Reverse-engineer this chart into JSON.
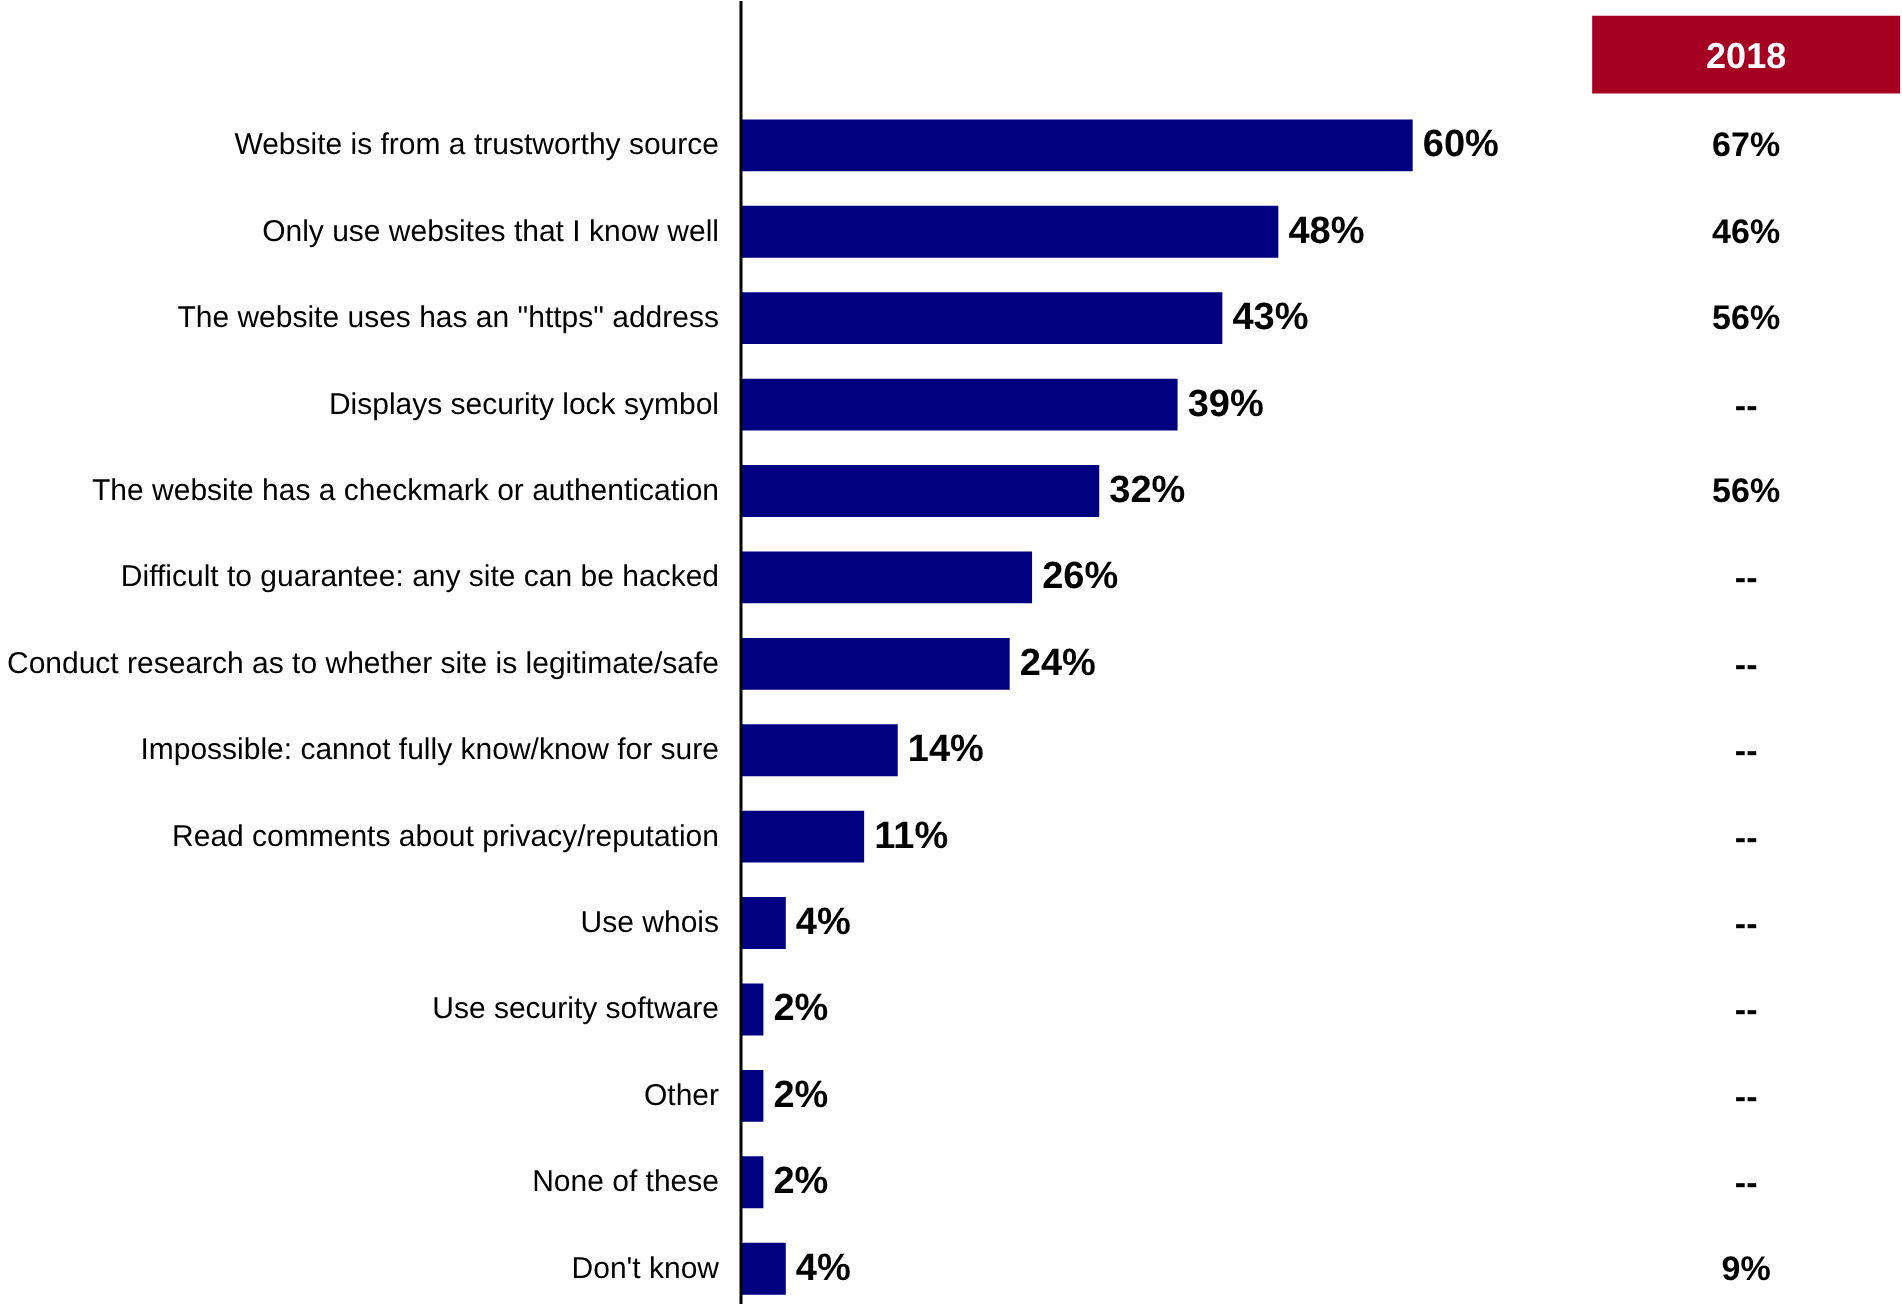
{
  "chart_data": {
    "type": "bar",
    "orientation": "horizontal",
    "categories": [
      "Website is from a trustworthy source",
      "Only use websites that I know well",
      "The website uses has an \"https\" address",
      "Displays security lock symbol",
      "The website has a checkmark or authentication",
      "Difficult to guarantee: any site can be hacked",
      "Conduct research as to whether site is legitimate/safe",
      "Impossible: cannot fully know/know for sure",
      "Read comments about privacy/reputation",
      "Use whois",
      "Use security software",
      "Other",
      "None of these",
      "Don't know"
    ],
    "series": [
      {
        "color": "#000080",
        "values": [
          60,
          48,
          43,
          39,
          32,
          26,
          24,
          14,
          11,
          4,
          2,
          2,
          2,
          4
        ],
        "value_labels": [
          "60%",
          "48%",
          "43%",
          "39%",
          "32%",
          "26%",
          "24%",
          "14%",
          "11%",
          "4%",
          "2%",
          "2%",
          "2%",
          "4%"
        ]
      }
    ],
    "annotations": [
      "2018",
      "67%",
      "46%",
      "56%",
      "--",
      "56%",
      "--",
      "--",
      "--",
      "--",
      "--",
      "--",
      "--",
      "--",
      "9%"
    ],
    "grid": false,
    "legend": false
  }
}
